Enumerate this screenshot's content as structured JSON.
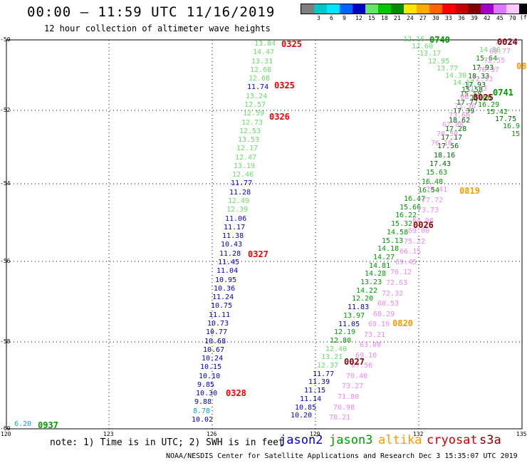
{
  "title": "00:00 — 11:59 UTC 11/16/2019",
  "subtitle": "12 hour collection of altimeter wave heights",
  "scale": {
    "unit": "(ft)",
    "bins": [
      {
        "label": "",
        "color": "#7f7f7f"
      },
      {
        "label": "3",
        "color": "#00c8c8"
      },
      {
        "label": "6",
        "color": "#00e6ff"
      },
      {
        "label": "9",
        "color": "#0064ff"
      },
      {
        "label": "12",
        "color": "#0000c8"
      },
      {
        "label": "15",
        "color": "#64e664"
      },
      {
        "label": "18",
        "color": "#00c800"
      },
      {
        "label": "21",
        "color": "#008c00"
      },
      {
        "label": "24",
        "color": "#ffe600"
      },
      {
        "label": "27",
        "color": "#ffaa00"
      },
      {
        "label": "30",
        "color": "#ff6400"
      },
      {
        "label": "33",
        "color": "#ff0000"
      },
      {
        "label": "36",
        "color": "#c80000"
      },
      {
        "label": "39",
        "color": "#800000"
      },
      {
        "label": "42",
        "color": "#a000c8"
      },
      {
        "label": "45",
        "color": "#dc78ff"
      },
      {
        "label": "70",
        "color": "#ffc8ff"
      },
      {
        "label": "",
        "color": "#000000"
      }
    ]
  },
  "axes": {
    "y_labels": [
      "-50",
      "-52",
      "-54",
      "-56",
      "-58",
      "-60"
    ],
    "x_labels": [
      "120",
      "123",
      "126",
      "129",
      "132",
      "135"
    ]
  },
  "colors": {
    "jason2": "#0000cc",
    "jason3": "#009900",
    "altika": "#ff9900",
    "cryosat": "#cc0000",
    "s3a": "#800000",
    "c_light_green": "#66dd66",
    "c_blue": "#0000cc",
    "c_green": "#009900",
    "c_dark_green": "#006600",
    "c_pink": "#ee88ee",
    "c_cyan": "#00aacc",
    "c_red": "#ee0000",
    "c_orange": "#ff9900",
    "c_maroon": "#800000"
  },
  "track1_values": [
    {
      "v": "13.84",
      "c": "c_light_green"
    },
    {
      "v": "14.47",
      "c": "c_light_green"
    },
    {
      "v": "13.31",
      "c": "c_light_green"
    },
    {
      "v": "12.68",
      "c": "c_light_green"
    },
    {
      "v": "12.68",
      "c": "c_light_green"
    },
    {
      "v": "11.74",
      "c": "c_blue"
    },
    {
      "v": "13.24",
      "c": "c_light_green"
    },
    {
      "v": "12.57",
      "c": "c_light_green"
    },
    {
      "v": "12.59",
      "c": "c_light_green"
    },
    {
      "v": "12.73",
      "c": "c_light_green"
    },
    {
      "v": "12.53",
      "c": "c_light_green"
    },
    {
      "v": "13.53",
      "c": "c_light_green"
    },
    {
      "v": "12.17",
      "c": "c_light_green"
    },
    {
      "v": "12.47",
      "c": "c_light_green"
    },
    {
      "v": "13.19",
      "c": "c_light_green"
    },
    {
      "v": "12.46",
      "c": "c_light_green"
    },
    {
      "v": "11.77",
      "c": "c_blue"
    },
    {
      "v": "11.28",
      "c": "c_blue"
    },
    {
      "v": "12.49",
      "c": "c_light_green"
    },
    {
      "v": "12.39",
      "c": "c_light_green"
    },
    {
      "v": "11.06",
      "c": "c_blue"
    },
    {
      "v": "11.17",
      "c": "c_blue"
    },
    {
      "v": "11.38",
      "c": "c_blue"
    },
    {
      "v": "10.43",
      "c": "c_blue"
    },
    {
      "v": "11.28",
      "c": "c_blue"
    },
    {
      "v": "11.45",
      "c": "c_blue"
    },
    {
      "v": "11.04",
      "c": "c_blue"
    },
    {
      "v": "10.95",
      "c": "c_blue"
    },
    {
      "v": "10.36",
      "c": "c_blue"
    },
    {
      "v": "11.24",
      "c": "c_blue"
    },
    {
      "v": "10.75",
      "c": "c_blue"
    },
    {
      "v": "11.11",
      "c": "c_blue"
    },
    {
      "v": "10.73",
      "c": "c_blue"
    },
    {
      "v": "10.77",
      "c": "c_blue"
    },
    {
      "v": "10.68",
      "c": "c_blue"
    },
    {
      "v": "10.67",
      "c": "c_blue"
    },
    {
      "v": "10.24",
      "c": "c_blue"
    },
    {
      "v": "10.15",
      "c": "c_blue"
    },
    {
      "v": "10.10",
      "c": "c_blue"
    },
    {
      "v": "9.85",
      "c": "c_blue"
    },
    {
      "v": "10.30",
      "c": "c_blue"
    },
    {
      "v": "9.88",
      "c": "c_blue"
    },
    {
      "v": "8.78",
      "c": "c_cyan"
    },
    {
      "v": "10.02",
      "c": "c_blue"
    }
  ],
  "track2_values": [
    {
      "v": "16.47",
      "c": "c_green"
    },
    {
      "v": "15.66",
      "c": "c_green"
    },
    {
      "v": "16.22",
      "c": "c_green"
    },
    {
      "v": "15.32",
      "c": "c_green"
    },
    {
      "v": "14.58",
      "c": "c_green"
    },
    {
      "v": "15.13",
      "c": "c_green"
    },
    {
      "v": "14.18",
      "c": "c_green"
    },
    {
      "v": "14.27",
      "c": "c_green"
    },
    {
      "v": "14.81",
      "c": "c_green"
    },
    {
      "v": "14.28",
      "c": "c_green"
    },
    {
      "v": "13.23",
      "c": "c_green"
    },
    {
      "v": "14.22",
      "c": "c_green"
    },
    {
      "v": "12.20",
      "c": "c_green"
    },
    {
      "v": "11.83",
      "c": "c_blue"
    },
    {
      "v": "13.97",
      "c": "c_green"
    },
    {
      "v": "11.05",
      "c": "c_blue"
    },
    {
      "v": "12.19",
      "c": "c_green"
    },
    {
      "v": "12.80",
      "c": "c_green"
    },
    {
      "v": "12.40",
      "c": "c_light_green"
    },
    {
      "v": "13.21",
      "c": "c_light_green"
    },
    {
      "v": "12.37",
      "c": "c_light_green"
    },
    {
      "v": "11.77",
      "c": "c_blue"
    },
    {
      "v": "11.39",
      "c": "c_blue"
    },
    {
      "v": "11.15",
      "c": "c_blue"
    },
    {
      "v": "11.14",
      "c": "c_blue"
    },
    {
      "v": "10.85",
      "c": "c_blue"
    },
    {
      "v": "10.20",
      "c": "c_blue"
    }
  ],
  "track3_values": [
    {
      "v": "70.41",
      "c": "c_pink"
    },
    {
      "v": "77.72",
      "c": "c_pink"
    },
    {
      "v": "73.73",
      "c": "c_pink"
    },
    {
      "v": "64.96",
      "c": "c_pink"
    },
    {
      "v": "69.00",
      "c": "c_pink"
    },
    {
      "v": "75.22",
      "c": "c_pink"
    },
    {
      "v": "66.15",
      "c": "c_pink"
    },
    {
      "v": "69.45",
      "c": "c_pink"
    },
    {
      "v": "76.12",
      "c": "c_pink"
    },
    {
      "v": "72.63",
      "c": "c_pink"
    },
    {
      "v": "72.32",
      "c": "c_pink"
    },
    {
      "v": "68.53",
      "c": "c_pink"
    },
    {
      "v": "68.29",
      "c": "c_pink"
    },
    {
      "v": "69.19",
      "c": "c_pink"
    },
    {
      "v": "73.21",
      "c": "c_pink"
    },
    {
      "v": "63.08",
      "c": "c_pink"
    },
    {
      "v": "69.10",
      "c": "c_pink"
    },
    {
      "v": "67.56",
      "c": "c_pink"
    },
    {
      "v": "70.40",
      "c": "c_pink"
    },
    {
      "v": "73.27",
      "c": "c_pink"
    },
    {
      "v": "71.80",
      "c": "c_pink"
    },
    {
      "v": "76.98",
      "c": "c_pink"
    },
    {
      "v": "78.21",
      "c": "c_pink"
    }
  ],
  "track4_values": [
    {
      "v": "16.54",
      "c": "c_green"
    },
    {
      "v": "16.48",
      "c": "c_green"
    },
    {
      "v": "15.63",
      "c": "c_green"
    },
    {
      "v": "17.43",
      "c": "c_dark_green"
    },
    {
      "v": "18.16",
      "c": "c_dark_green"
    },
    {
      "v": "17.56",
      "c": "c_dark_green"
    },
    {
      "v": "17.17",
      "c": "c_dark_green"
    },
    {
      "v": "17.28",
      "c": "c_dark_green"
    },
    {
      "v": "18.62",
      "c": "c_dark_green"
    },
    {
      "v": "17.39",
      "c": "c_dark_green"
    },
    {
      "v": "17.77",
      "c": "c_dark_green"
    },
    {
      "v": "15.58",
      "c": "c_green"
    },
    {
      "v": "17.93",
      "c": "c_dark_green"
    },
    {
      "v": "18.33",
      "c": "c_dark_green"
    },
    {
      "v": "17.93",
      "c": "c_dark_green"
    },
    {
      "v": "15.64",
      "c": "c_green"
    },
    {
      "v": "14.86",
      "c": "c_light_green"
    }
  ],
  "track5_values": [
    {
      "v": "76.16",
      "c": "c_pink"
    },
    {
      "v": "70.50",
      "c": "c_pink"
    },
    {
      "v": "67.88",
      "c": "c_pink"
    },
    {
      "v": "73.66",
      "c": "c_pink"
    },
    {
      "v": "71.36",
      "c": "c_pink"
    },
    {
      "v": "66.35",
      "c": "c_pink"
    },
    {
      "v": "71.93",
      "c": "c_pink"
    },
    {
      "v": "72.93",
      "c": "c_pink"
    },
    {
      "v": "70.97",
      "c": "c_pink"
    },
    {
      "v": "72.55",
      "c": "c_pink"
    },
    {
      "v": "69.77",
      "c": "c_pink"
    },
    {
      "v": "72.36",
      "c": "c_pink"
    }
  ],
  "track6_values": [
    {
      "v": "12.16",
      "c": "c_light_green"
    },
    {
      "v": "12.60",
      "c": "c_light_green"
    },
    {
      "v": "13.17",
      "c": "c_light_green"
    },
    {
      "v": "12.95",
      "c": "c_light_green"
    },
    {
      "v": "13.77",
      "c": "c_light_green"
    },
    {
      "v": "14.30",
      "c": "c_light_green"
    },
    {
      "v": "14.17",
      "c": "c_light_green"
    },
    {
      "v": "15.58",
      "c": "c_green"
    },
    {
      "v": "15.68",
      "c": "c_green"
    },
    {
      "v": "16.29",
      "c": "c_green"
    },
    {
      "v": "15.42",
      "c": "c_green"
    },
    {
      "v": "17.75",
      "c": "c_dark_green"
    },
    {
      "v": "16.9",
      "c": "c_green"
    },
    {
      "v": "15",
      "c": "c_green"
    }
  ],
  "pass_labels": [
    {
      "t": "0325",
      "c": "c_red"
    },
    {
      "t": "0325",
      "c": "c_red"
    },
    {
      "t": "0326",
      "c": "c_red"
    },
    {
      "t": "0327",
      "c": "c_red"
    },
    {
      "t": "0328",
      "c": "c_red"
    },
    {
      "t": "0740",
      "c": "c_green"
    },
    {
      "t": "0741",
      "c": "c_green"
    },
    {
      "t": "0937",
      "c": "c_green"
    },
    {
      "t": "0024",
      "c": "c_maroon"
    },
    {
      "t": "0025",
      "c": "c_maroon"
    },
    {
      "t": "0026",
      "c": "c_maroon"
    },
    {
      "t": "0027",
      "c": "c_maroon"
    },
    {
      "t": "0819",
      "c": "c_orange"
    },
    {
      "t": "0820",
      "c": "c_orange"
    },
    {
      "t": "08",
      "c": "c_orange"
    }
  ],
  "extra_values": [
    {
      "v": "6.20",
      "c": "c_cyan"
    }
  ],
  "note": "note: 1) Time is in UTC; 2) SWH is in feet",
  "legend": [
    {
      "label": "jason2",
      "c": "jason2"
    },
    {
      "label": "jason3",
      "c": "jason3"
    },
    {
      "label": "altika",
      "c": "altika"
    },
    {
      "label": "cryosat",
      "c": "cryosat"
    },
    {
      "label": "s3a",
      "c": "s3a"
    }
  ],
  "credit": "NOAA/NESDIS Center for Satellite Applications and Research   Dec  3 15:35:07 UTC 2019"
}
